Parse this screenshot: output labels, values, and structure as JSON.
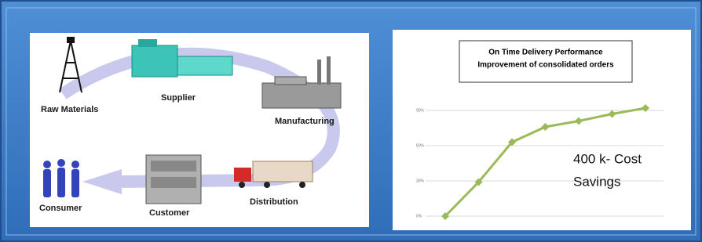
{
  "diagram": {
    "nodes": [
      {
        "label": "Raw Materials"
      },
      {
        "label": "Supplier"
      },
      {
        "label": "Manufacturing"
      },
      {
        "label": "Distribution"
      },
      {
        "label": "Customer"
      },
      {
        "label": "Consumer"
      }
    ]
  },
  "chart_data": {
    "type": "line",
    "title": [
      "On Time Delivery Performance",
      "Improvement of consolidated orders"
    ],
    "annotation": [
      "400 k- Cost",
      "Savings"
    ],
    "categories": [
      null,
      null,
      null,
      null,
      null,
      null,
      null
    ],
    "values": [
      0,
      29,
      63,
      76,
      81,
      87,
      92
    ],
    "color": "#9bbb59",
    "ylim": [
      0,
      90
    ],
    "yticks": [
      {
        "value": 0,
        "label": "0%"
      },
      {
        "value": 30,
        "label": "30%"
      },
      {
        "value": 60,
        "label": "60%"
      },
      {
        "value": 90,
        "label": "90%"
      }
    ],
    "grid": true
  }
}
